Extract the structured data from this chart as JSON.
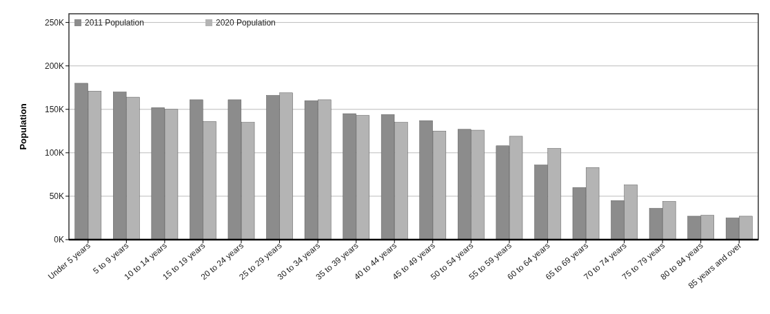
{
  "chart_data": {
    "type": "bar",
    "ylabel": "Population",
    "categories": [
      "Under 5 years",
      "5 to 9 years",
      "10 to 14 years",
      "15 to 19 years",
      "20 to 24 years",
      "25 to 29 years",
      "30 to 34 years",
      "35 to 39 years",
      "40 to 44 years",
      "45 to 49 years",
      "50 to 54 years",
      "55 to 59 years",
      "60 to 64 years",
      "65 to 69 years",
      "70 to 74 years",
      "75 to 79 years",
      "80 to 84 years",
      "85 years and over"
    ],
    "series": [
      {
        "name": "2011 Population",
        "color": "#8c8c8c",
        "values": [
          180000,
          170000,
          152000,
          161000,
          161000,
          166000,
          160000,
          145000,
          144000,
          137000,
          127000,
          108000,
          86000,
          60000,
          45000,
          36000,
          27000,
          25000
        ]
      },
      {
        "name": "2020 Population",
        "color": "#b4b4b4",
        "values": [
          171000,
          164000,
          150000,
          136000,
          135000,
          169000,
          161000,
          143000,
          135000,
          125000,
          126000,
          119000,
          105000,
          83000,
          63000,
          44000,
          28000,
          27000
        ]
      }
    ],
    "ylim": [
      0,
      260000
    ],
    "yticks": [
      {
        "value": 0,
        "label": "0K"
      },
      {
        "value": 50000,
        "label": "50K"
      },
      {
        "value": 100000,
        "label": "100K"
      },
      {
        "value": 150000,
        "label": "150K"
      },
      {
        "value": 200000,
        "label": "200K"
      },
      {
        "value": 250000,
        "label": "250K"
      }
    ],
    "grid": "y",
    "legend": "top left"
  }
}
